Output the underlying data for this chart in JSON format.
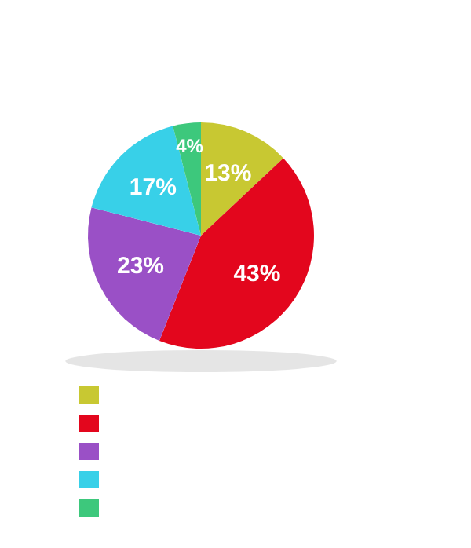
{
  "chart_data": {
    "type": "pie",
    "categories": [
      null,
      null,
      null,
      null,
      null
    ],
    "values": [
      13,
      43,
      23,
      17,
      4
    ],
    "colors": [
      "#c8c832",
      "#e3061d",
      "#9a50c6",
      "#38d0e8",
      "#3dc87c"
    ],
    "value_labels": [
      "13%",
      "43%",
      "23%",
      "17%",
      "4%"
    ]
  }
}
